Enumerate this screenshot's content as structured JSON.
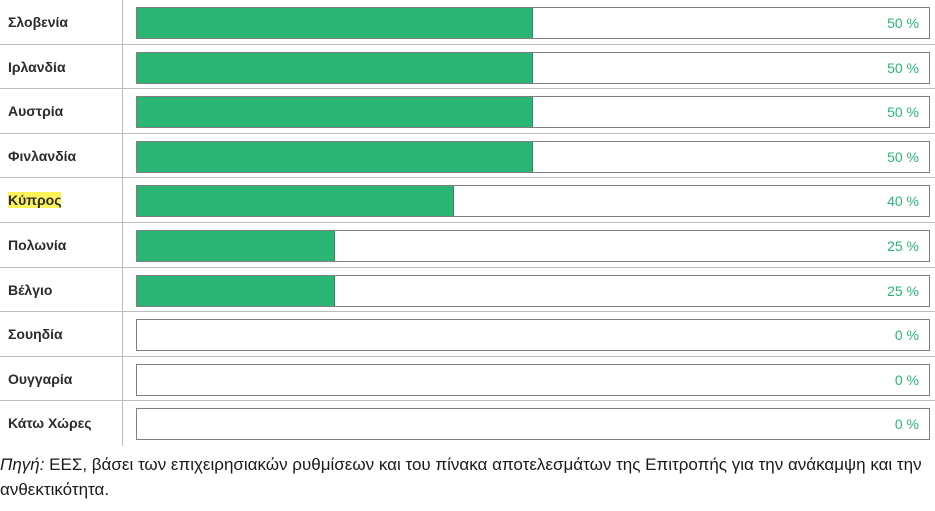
{
  "chart_data": {
    "type": "bar",
    "orientation": "horizontal",
    "categories": [
      "Σλοβενία",
      "Ιρλανδία",
      "Αυστρία",
      "Φινλανδία",
      "Κύπρος",
      "Πολωνία",
      "Βέλγιο",
      "Σουηδία",
      "Ουγγαρία",
      "Κάτω Χώρες"
    ],
    "values": [
      50,
      50,
      50,
      50,
      40,
      25,
      25,
      0,
      0,
      0
    ],
    "value_labels": [
      "50 %",
      "50 %",
      "50 %",
      "50 %",
      "40 %",
      "25 %",
      "25 %",
      "0 %",
      "0 %",
      "0 %"
    ],
    "highlighted_category": "Κύπρος",
    "xlim": [
      0,
      100
    ],
    "unit": "%",
    "title": "",
    "xlabel": "",
    "ylabel": "",
    "grid": false,
    "colors": {
      "bar": "#2bb574",
      "value_text": "#2bb574",
      "highlight": "#fff35a"
    }
  },
  "source": {
    "label": "Πηγή:",
    "text": " ΕΕΣ, βάσει των επιχειρησιακών ρυθμίσεων και του πίνακα αποτελεσμάτων της Επιτροπής για την ανάκαμψη και την ανθεκτικότητα."
  }
}
